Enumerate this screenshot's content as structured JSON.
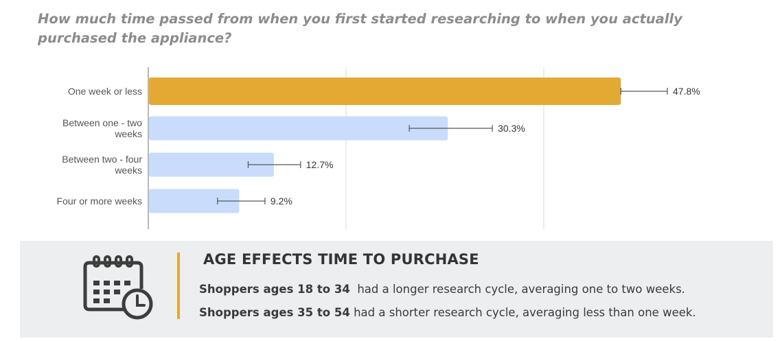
{
  "question": "How much time passed from when you first started researching to when you actually purchased the appliance?",
  "chart_data": {
    "type": "bar",
    "orientation": "horizontal",
    "categories": [
      [
        "One week or less"
      ],
      [
        "Between one - two",
        "weeks"
      ],
      [
        "Between two - four",
        "weeks"
      ],
      [
        "Four or more weeks"
      ]
    ],
    "values": [
      47.8,
      30.3,
      12.7,
      9.2
    ],
    "value_labels": [
      "47.8%",
      "30.3%",
      "12.7%",
      "9.2%"
    ],
    "error_low": [
      47.8,
      26.4,
      10.1,
      7.0
    ],
    "error_high": [
      52.5,
      34.8,
      15.4,
      11.8
    ],
    "xlim": [
      0,
      60
    ],
    "gridlines": [
      0,
      20,
      40
    ],
    "grid": true,
    "colors": {
      "highlight": "#e3a932",
      "default": "#c9dcfb"
    },
    "highlight_index": 0
  },
  "callout": {
    "icon": "calendar-clock-icon",
    "title": "AGE EFFECTS TIME TO PURCHASE",
    "line1_bold": "Shoppers ages 18 to 34",
    "line1_rest": "  had a longer research cycle, averaging one to two weeks.",
    "line2_bold": "Shoppers ages 35 to 54",
    "line2_rest": " had a shorter research cycle, averaging less than one week.",
    "accent_color": "#e3a932"
  }
}
